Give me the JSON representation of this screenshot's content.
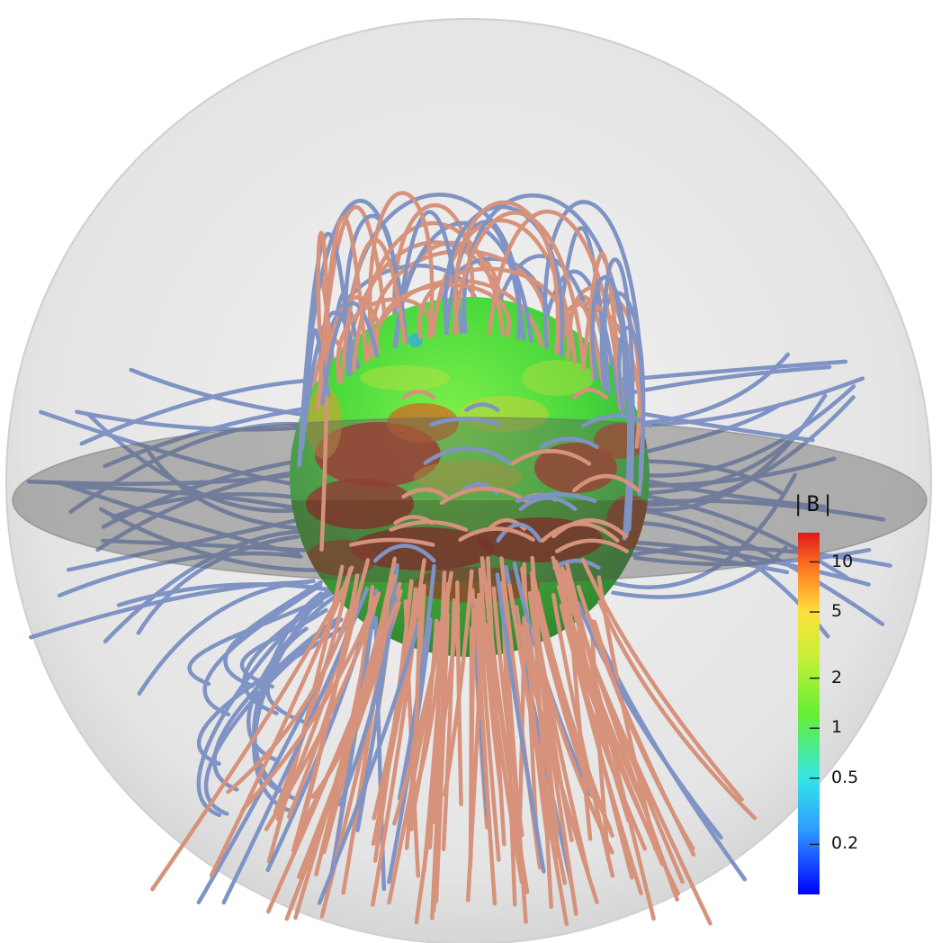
{
  "colorbar": {
    "title": "|B|",
    "scale": "log",
    "colormap": "jet",
    "ticks": [
      {
        "label": "10",
        "value": 10
      },
      {
        "label": "5",
        "value": 5
      },
      {
        "label": "2",
        "value": 2
      },
      {
        "label": "1",
        "value": 1
      },
      {
        "label": "0.5",
        "value": 0.5
      },
      {
        "label": "0.2",
        "value": 0.2
      }
    ]
  },
  "colors": {
    "open_field_line": "#d6927a",
    "closed_field_line": "#7f93c4",
    "outer_sphere": "#ededed",
    "equatorial_plane": "#8c8c8c",
    "surface_weak": "#3fdc3f",
    "surface_strong": "#c0321e"
  }
}
